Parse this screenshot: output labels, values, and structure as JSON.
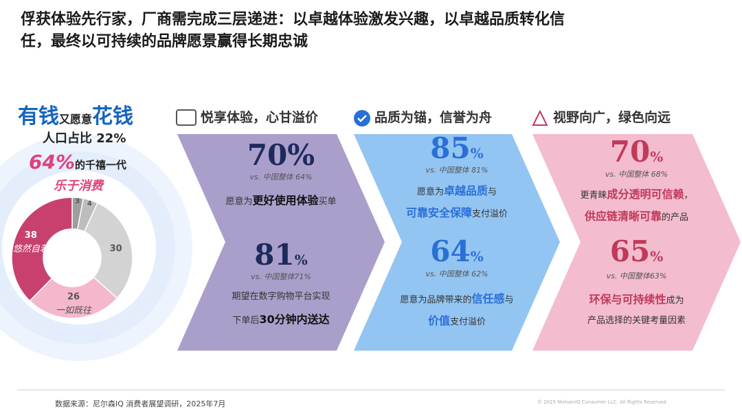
{
  "title": [
    "俘获体验先行家，厂商需完成三层递进：以卓越体验激发兴趣，以卓越品质转化信",
    "任，最终以可持续的品牌愿景赢得长期忠诚"
  ],
  "left": {
    "big1": "有钱",
    "small": "又愿意",
    "big2": "花钱",
    "share": "人口占比 22%",
    "stat": "64%",
    "stat_text": "的千禧一代",
    "tagline": "乐于消费"
  },
  "chart_data": {
    "type": "pie",
    "donut": true,
    "categories": [
      null,
      null,
      null,
      "一如既往",
      "悠然自若"
    ],
    "values": [
      3,
      4,
      30,
      26,
      38
    ],
    "colors": [
      "#9e9e9e",
      "#bdbdbd",
      "#d3d3d3",
      "#f5b7cc",
      "#c8416e"
    ]
  },
  "panels": [
    {
      "header": "悦享体验，心甘溢价",
      "color": "#aa9fcb",
      "accent": "#1f2a5c",
      "items": [
        {
          "num": "70",
          "pct": "%",
          "vs": "vs. 中国整体 64%",
          "lines": [
            [
              {
                "text": "愿意为",
                "strong": false
              },
              {
                "text": "更好使用体验",
                "strong": true
              },
              {
                "text": "买单",
                "strong": false
              }
            ]
          ]
        },
        {
          "num": "81",
          "pct": "%",
          "vs": "vs. 中国整体71%",
          "lines": [
            [
              {
                "text": "期望在数字购物平台实现",
                "strong": false
              }
            ],
            [
              {
                "text": "下单后",
                "strong": false
              },
              {
                "text": "30分钟内送达",
                "strong": true
              }
            ]
          ]
        }
      ]
    },
    {
      "header": "品质为锚，信誉为舟",
      "color": "#93c5f2",
      "accent": "#2a6fd6",
      "items": [
        {
          "num": "85",
          "pct": "%",
          "vs": "vs. 中国整体 81%",
          "lines": [
            [
              {
                "text": "愿意为",
                "strong": false
              },
              {
                "text": "卓越品质",
                "strong": true
              },
              {
                "text": "与",
                "strong": false
              }
            ],
            [
              {
                "text": "可靠安全保障",
                "strong": true
              },
              {
                "text": "支付溢价",
                "strong": false
              }
            ]
          ]
        },
        {
          "num": "64",
          "pct": "%",
          "vs": "vs. 中国整体 62%",
          "lines": [
            [
              {
                "text": "愿意为品牌带来的",
                "strong": false
              },
              {
                "text": "信任感",
                "strong": true
              },
              {
                "text": "与",
                "strong": false
              }
            ],
            [
              {
                "text": "价值",
                "strong": true
              },
              {
                "text": "支付溢价",
                "strong": false
              }
            ]
          ]
        }
      ]
    },
    {
      "header": "视野向广，绿色向远",
      "color": "#f3bccf",
      "accent": "#c0395a",
      "items": [
        {
          "num": "70",
          "pct": "%",
          "vs": "vs. 中国整体 68%",
          "lines": [
            [
              {
                "text": "更青睐",
                "strong": false
              },
              {
                "text": "成分透明可信赖",
                "strong": true
              },
              {
                "text": "，",
                "strong": false
              }
            ],
            [
              {
                "text": "供应链清晰可靠",
                "strong": true
              },
              {
                "text": "的产品",
                "strong": false
              }
            ]
          ]
        },
        {
          "num": "65",
          "pct": "%",
          "vs": "vs. 中国整体63%",
          "lines": [
            [
              {
                "text": "环保与可持续性",
                "strong": true
              },
              {
                "text": "成为",
                "strong": false
              }
            ],
            [
              {
                "text": "产品选择的关键考量因素",
                "strong": false
              }
            ]
          ]
        }
      ]
    }
  ],
  "footer": {
    "source": "数据来源：尼尔森IQ 消费者展望调研，2025年7月",
    "copyright": "© 2025 NielsenIQ Consumer LLC. All Rights Reserved."
  }
}
